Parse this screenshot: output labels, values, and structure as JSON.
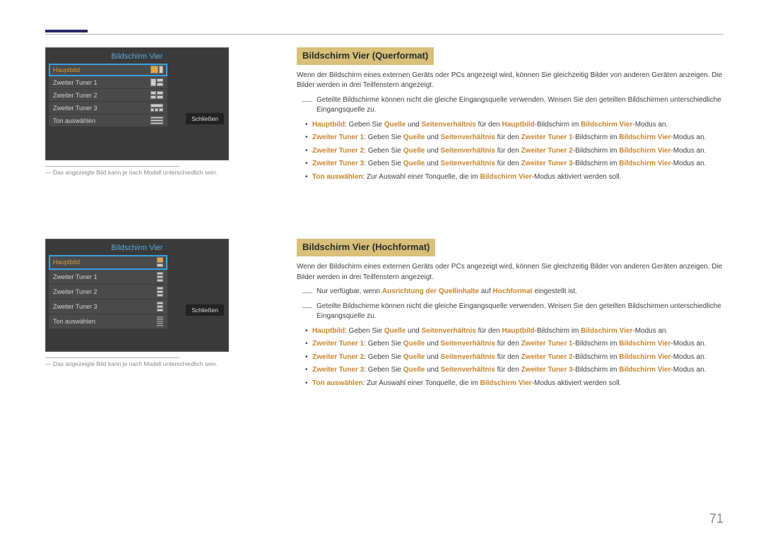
{
  "pageNumber": "71",
  "section1": {
    "heading": "Bildschirm Vier (Querformat)",
    "intro": "Wenn der Bildschirm eines externen Geräts oder PCs angezeigt wird, können Sie gleichzeitig Bilder von anderen Geräten anzeigen. Die Bilder werden in drei Teilfenstern angezeigt.",
    "dashNotes": [
      "Geteilte Bildschirme können nicht die gleiche Eingangsquelle verwenden. Weisen Sie den geteilten Bildschirmen unterschiedliche Eingangsquelle zu."
    ],
    "bullets": [
      {
        "pre": "Hauptbild",
        "mid": ": Geben Sie ",
        "k1": "Quelle",
        "mid2": " und ",
        "k2": "Seitenverhältnis",
        "mid3": " für den ",
        "k3": "Hauptbild",
        "mid4": "-Bildschirm im ",
        "k4": "Bildschirm Vier",
        "post": "-Modus an."
      },
      {
        "pre": "Zweiter Tuner 1",
        "mid": ": Geben Sie ",
        "k1": "Quelle",
        "mid2": " und ",
        "k2": "Seitenverhältnis",
        "mid3": " für den ",
        "k3": "Zweiter Tuner 1",
        "mid4": "-Bildschirm im ",
        "k4": "Bildschirm Vier",
        "post": "-Modus an."
      },
      {
        "pre": "Zweiter Tuner 2",
        "mid": ": Geben Sie ",
        "k1": "Quelle",
        "mid2": " und ",
        "k2": "Seitenverhältnis",
        "mid3": " für den ",
        "k3": "Zweiter Tuner 2",
        "mid4": "-Bildschirm im ",
        "k4": "Bildschirm Vier",
        "post": "-Modus an."
      },
      {
        "pre": "Zweiter Tuner 3",
        "mid": ": Geben Sie ",
        "k1": "Quelle",
        "mid2": " und ",
        "k2": "Seitenverhältnis",
        "mid3": " für den ",
        "k3": "Zweiter Tuner 3",
        "mid4": "-Bildschirm im ",
        "k4": "Bildschirm Vier",
        "post": "-Modus an."
      },
      {
        "pre": "Ton auswählen",
        "mid": ": Zur Auswahl einer Tonquelle, die im ",
        "k1": "Bildschirm Vier",
        "post": "-Modus aktiviert werden soll."
      }
    ]
  },
  "section2": {
    "heading": "Bildschirm Vier (Hochformat)",
    "intro": "Wenn der Bildschirm eines externen Geräts oder PCs angezeigt wird, können Sie gleichzeitig Bilder von anderen Geräten anzeigen. Die Bilder werden in drei Teilfenstern angezeigt.",
    "dashNotes": [
      {
        "pre": "Nur verfügbar, wenn ",
        "k1": "Ausrichtung der Quellinhalte",
        "mid": " auf ",
        "k2": "Hochformat",
        "post": " eingestellt ist."
      },
      {
        "text": "Geteilte Bildschirme können nicht die gleiche Eingangsquelle verwenden. Weisen Sie den geteilten Bildschirmen unterschiedliche Eingangsquelle zu."
      }
    ],
    "bullets": [
      {
        "pre": "Hauptbild",
        "mid": ": Geben Sie ",
        "k1": "Quelle",
        "mid2": " und ",
        "k2": "Seitenverhältnis",
        "mid3": " für den ",
        "k3": "Hauptbild",
        "mid4": "-Bildschirm im ",
        "k4": "Bildschirm Vier",
        "post": "-Modus an."
      },
      {
        "pre": "Zweiter Tuner 1",
        "mid": ": Geben Sie ",
        "k1": "Quelle",
        "mid2": " und ",
        "k2": "Seitenverhältnis",
        "mid3": " für den ",
        "k3": "Zweiter Tuner 1",
        "mid4": "-Bildschirm im ",
        "k4": "Bildschirm Vier",
        "post": "-Modus an."
      },
      {
        "pre": "Zweiter Tuner 2",
        "mid": ": Geben Sie ",
        "k1": "Quelle",
        "mid2": " und ",
        "k2": "Seitenverhältnis",
        "mid3": " für den ",
        "k3": "Zweiter Tuner 2",
        "mid4": "-Bildschirm im ",
        "k4": "Bildschirm Vier",
        "post": "-Modus an."
      },
      {
        "pre": "Zweiter Tuner 3",
        "mid": ": Geben Sie ",
        "k1": "Quelle",
        "mid2": " und ",
        "k2": "Seitenverhältnis",
        "mid3": " für den ",
        "k3": "Zweiter Tuner 3",
        "mid4": "-Bildschirm im ",
        "k4": "Bildschirm Vier",
        "post": "-Modus an."
      },
      {
        "pre": "Ton auswählen",
        "mid": ": Zur Auswahl einer Tonquelle, die im ",
        "k1": "Bildschirm Vier",
        "post": "-Modus aktiviert werden soll."
      }
    ]
  },
  "uiBox": {
    "title": "Bildschirm Vier",
    "items": [
      "Hauptbild",
      "Zweiter Tuner 1",
      "Zweiter Tuner 2",
      "Zweiter Tuner 3",
      "Ton auswählen"
    ],
    "closeLabel": "Schließen",
    "footnote": "Das angezeigte Bild kann je nach Modell unterschiedlich sein."
  }
}
